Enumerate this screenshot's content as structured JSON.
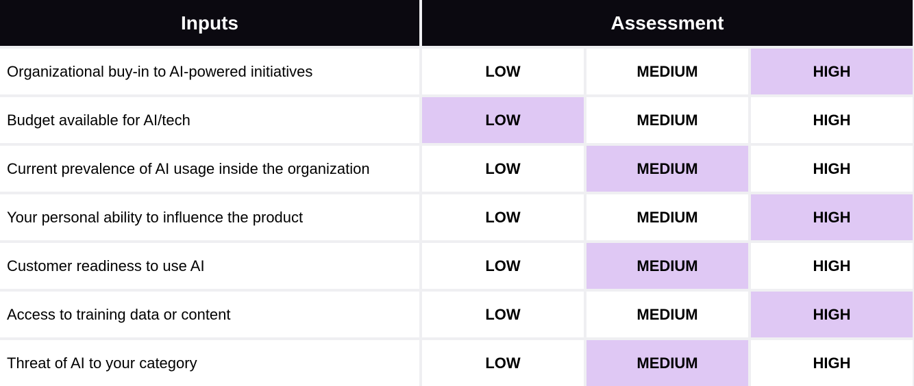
{
  "header": {
    "inputs": "Inputs",
    "assessment": "Assessment"
  },
  "levels": [
    "LOW",
    "MEDIUM",
    "HIGH"
  ],
  "highlight_color": "#dfc8f4",
  "header_color": "#0b0910",
  "rows": [
    {
      "label": "Organizational buy-in to AI-powered initiatives",
      "selected": "HIGH"
    },
    {
      "label": "Budget available for AI/tech",
      "selected": "LOW"
    },
    {
      "label": "Current prevalence of AI usage inside the organization",
      "selected": "MEDIUM"
    },
    {
      "label": "Your personal ability to influence the product",
      "selected": "HIGH"
    },
    {
      "label": "Customer readiness to use AI",
      "selected": "MEDIUM"
    },
    {
      "label": "Access to training data or content",
      "selected": "HIGH"
    },
    {
      "label": "Threat of AI to your category",
      "selected": "MEDIUM"
    }
  ]
}
